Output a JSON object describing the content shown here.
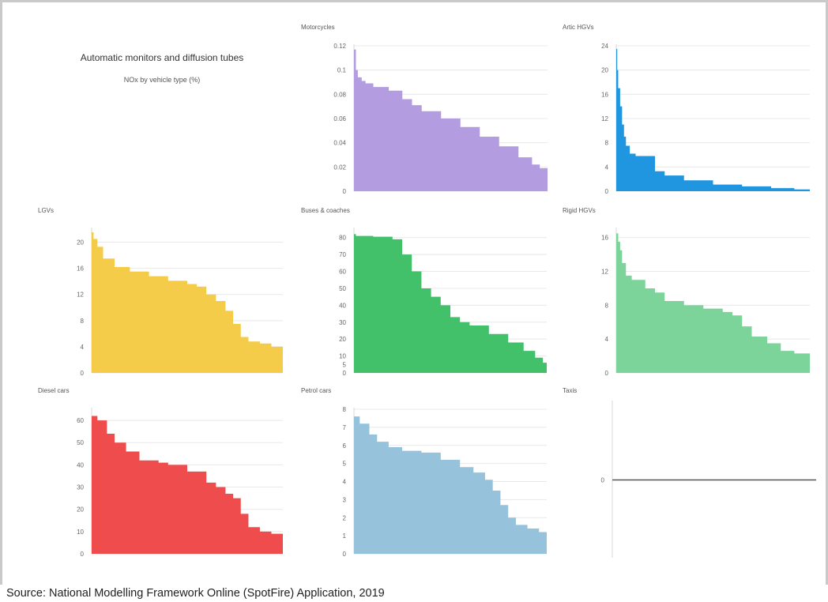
{
  "header": {
    "title": "Automatic monitors and diffusion tubes",
    "subtitle": "NOx by vehicle type (%)"
  },
  "footer": {
    "source": "Source: National Modelling Framework Online (SpotFire) Application, 2019"
  },
  "chart_data": [
    {
      "type": "area",
      "title": "Motorcycles",
      "color": "#b39de0",
      "ylim": [
        0,
        0.12
      ],
      "yticks": [
        0,
        0.02,
        0.04,
        0.06,
        0.08,
        0.1,
        0.12
      ],
      "ytick_labels": [
        "0",
        "0.02",
        "0.04",
        "0.06",
        "0.08",
        "0.1",
        "0.12"
      ],
      "x": [
        0,
        1,
        2,
        4,
        6,
        10,
        18,
        25,
        30,
        35,
        45,
        55,
        65,
        75,
        85,
        92,
        96,
        100
      ],
      "y": [
        0.117,
        0.1,
        0.094,
        0.091,
        0.089,
        0.086,
        0.083,
        0.076,
        0.071,
        0.066,
        0.06,
        0.053,
        0.045,
        0.037,
        0.028,
        0.022,
        0.019,
        0.016
      ]
    },
    {
      "type": "area",
      "title": "Artic HGVs",
      "color": "#2196e0",
      "ylim": [
        0,
        24
      ],
      "yticks": [
        0,
        4,
        8,
        12,
        16,
        20,
        24
      ],
      "ytick_labels": [
        "0",
        "4",
        "8",
        "12",
        "16",
        "20",
        "24"
      ],
      "x": [
        0,
        0.5,
        1,
        2,
        3,
        4,
        5,
        7,
        10,
        15,
        20,
        25,
        35,
        50,
        65,
        80,
        92,
        100
      ],
      "y": [
        23.5,
        20,
        17,
        14,
        11,
        9,
        7.5,
        6.2,
        5.8,
        5.8,
        3.3,
        2.6,
        1.8,
        1.1,
        0.8,
        0.5,
        0.3,
        0.1
      ]
    },
    {
      "type": "area",
      "title": "LGVs",
      "color": "#f4cc4a",
      "ylim": [
        0,
        22
      ],
      "yticks": [
        0,
        4,
        8,
        12,
        16,
        20
      ],
      "ytick_labels": [
        "0",
        "4",
        "8",
        "12",
        "16",
        "20"
      ],
      "x": [
        0,
        1,
        3,
        6,
        12,
        20,
        30,
        40,
        50,
        55,
        60,
        65,
        70,
        74,
        78,
        82,
        88,
        94,
        100
      ],
      "y": [
        21.5,
        20.5,
        19.3,
        17.5,
        16.2,
        15.5,
        14.8,
        14.1,
        13.6,
        13.2,
        12,
        11,
        9.5,
        7.5,
        5.5,
        4.8,
        4.5,
        4,
        3.3
      ]
    },
    {
      "type": "area",
      "title": "Buses & coaches",
      "color": "#42c06a",
      "ylim": [
        0,
        85
      ],
      "yticks": [
        0,
        5,
        10,
        20,
        30,
        40,
        50,
        60,
        70,
        80
      ],
      "ytick_labels": [
        "0",
        "5",
        "10",
        "20",
        "30",
        "40",
        "50",
        "60",
        "70",
        "80"
      ],
      "x": [
        0,
        1,
        10,
        20,
        25,
        30,
        35,
        40,
        45,
        50,
        55,
        60,
        70,
        80,
        88,
        94,
        98,
        100
      ],
      "y": [
        82,
        81,
        80.5,
        79,
        70,
        60,
        50,
        45,
        40,
        33,
        30,
        28,
        23,
        18,
        13,
        9,
        6,
        3
      ]
    },
    {
      "type": "area",
      "title": "Rigid HGVs",
      "color": "#7dd49b",
      "ylim": [
        0,
        17
      ],
      "yticks": [
        0,
        4,
        8,
        12,
        16
      ],
      "ytick_labels": [
        "0",
        "4",
        "8",
        "12",
        "16"
      ],
      "x": [
        0,
        1,
        2,
        3,
        5,
        8,
        15,
        20,
        25,
        35,
        45,
        55,
        60,
        65,
        70,
        78,
        85,
        92,
        100
      ],
      "y": [
        16.5,
        15.5,
        14.5,
        13,
        11.5,
        11,
        10,
        9.5,
        8.5,
        8,
        7.6,
        7.2,
        6.8,
        5.5,
        4.3,
        3.5,
        2.6,
        2.3,
        2
      ]
    },
    {
      "type": "area",
      "title": "Diesel cars",
      "color": "#ef4d4d",
      "ylim": [
        0,
        65
      ],
      "yticks": [
        0,
        10,
        20,
        30,
        40,
        50,
        60
      ],
      "ytick_labels": [
        "0",
        "10",
        "20",
        "30",
        "40",
        "50",
        "60"
      ],
      "x": [
        0,
        3,
        8,
        12,
        18,
        25,
        35,
        40,
        50,
        60,
        65,
        70,
        74,
        78,
        82,
        88,
        94,
        100
      ],
      "y": [
        62,
        60,
        54,
        50,
        46,
        42,
        41,
        40,
        37,
        32,
        30,
        27,
        25,
        18,
        12,
        10,
        9,
        8
      ]
    },
    {
      "type": "area",
      "title": "Petrol cars",
      "color": "#97c2dc",
      "ylim": [
        0,
        8
      ],
      "yticks": [
        0,
        1,
        2,
        3,
        4,
        5,
        6,
        7,
        8
      ],
      "ytick_labels": [
        "0",
        "1",
        "2",
        "3",
        "4",
        "5",
        "6",
        "7",
        "8"
      ],
      "x": [
        0,
        3,
        8,
        12,
        18,
        25,
        35,
        45,
        55,
        62,
        68,
        72,
        76,
        80,
        84,
        90,
        96,
        100
      ],
      "y": [
        7.6,
        7.2,
        6.6,
        6.2,
        5.9,
        5.7,
        5.6,
        5.2,
        4.8,
        4.5,
        4.1,
        3.5,
        2.7,
        2,
        1.6,
        1.4,
        1.2,
        1.1
      ]
    },
    {
      "type": "line",
      "title": "Taxis",
      "color": "#555555",
      "ylim": [
        -1,
        1
      ],
      "yticks": [
        0
      ],
      "ytick_labels": [
        "0"
      ],
      "x": [
        0,
        100
      ],
      "y": [
        0,
        0
      ]
    }
  ]
}
